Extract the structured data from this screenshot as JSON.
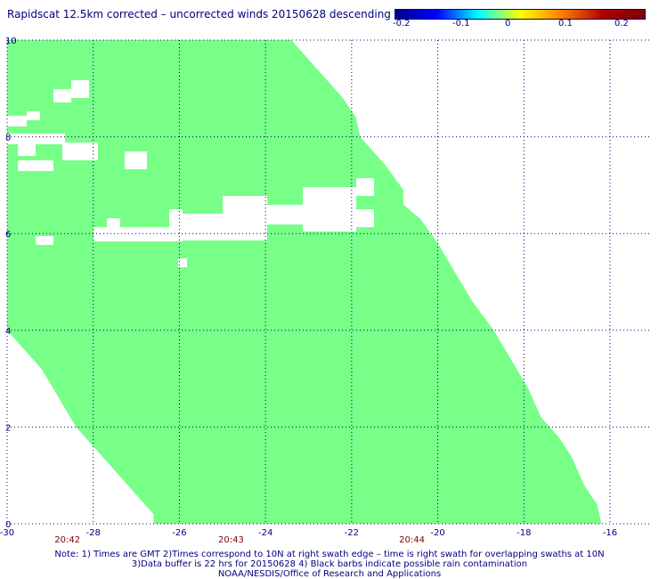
{
  "title": "Rapidscat 12.5km corrected – uncorrected winds 20150628 descending",
  "colorbar": {
    "labels": [
      "-0.2",
      "-0.1",
      "0",
      "0.1",
      "0.2"
    ],
    "colors": [
      "#00008b",
      "#0000ff",
      "#00ffff",
      "#ffff00",
      "#ff8000",
      "#b00000",
      "#800000"
    ]
  },
  "map_data": {
    "x_range": [
      -30,
      -16
    ],
    "y_range": [
      0,
      10
    ],
    "x_ticks": [
      "-30",
      "-28",
      "-26",
      "-24",
      "-22",
      "-20",
      "-18",
      "-16"
    ],
    "y_ticks": [
      "0",
      "2",
      "4",
      "6",
      "8",
      "10"
    ],
    "time_labels": [
      {
        "lon": -28.6,
        "text": "20:42"
      },
      {
        "lon": -24.8,
        "text": "20:43"
      },
      {
        "lon": -20.6,
        "text": "20:44"
      }
    ],
    "fill_color": "#77ff88",
    "grid_color": "#000080",
    "time_color": "#800000",
    "swath_right_edge": [
      [
        10,
        -23.4
      ],
      [
        9.6,
        -23.0
      ],
      [
        9.2,
        -22.6
      ],
      [
        8.8,
        -22.2
      ],
      [
        8.4,
        -21.9
      ],
      [
        8.0,
        -21.8
      ],
      [
        7.4,
        -21.2
      ],
      [
        6.9,
        -20.8
      ],
      [
        6.6,
        -20.8
      ],
      [
        6.3,
        -20.4
      ],
      [
        5.8,
        -20.0
      ],
      [
        5.2,
        -19.6
      ],
      [
        4.6,
        -19.2
      ],
      [
        4.0,
        -18.7
      ],
      [
        3.4,
        -18.3
      ],
      [
        2.8,
        -17.9
      ],
      [
        2.2,
        -17.6
      ],
      [
        1.8,
        -17.2
      ],
      [
        1.4,
        -16.9
      ],
      [
        0.8,
        -16.6
      ],
      [
        0.4,
        -16.3
      ],
      [
        0,
        -16.2
      ]
    ],
    "swath_left_edge": [
      [
        10,
        -30.0
      ],
      [
        4.0,
        -30.0
      ],
      [
        3.6,
        -29.6
      ],
      [
        3.2,
        -29.2
      ],
      [
        2.6,
        -28.8
      ],
      [
        2.0,
        -28.4
      ],
      [
        1.6,
        -28.0
      ],
      [
        1.2,
        -27.6
      ],
      [
        0.8,
        -27.2
      ],
      [
        0.4,
        -26.8
      ],
      [
        0.2,
        -26.6
      ],
      [
        0,
        -26.6
      ]
    ]
  },
  "notes": [
    "Note: 1) Times are GMT 2)Times correspond to 10N at right swath edge – time is right swath for overlapping swaths at 10N",
    "3)Data buffer is 22 hrs for 20150628 4) Black barbs indicate possible rain contamination",
    "NOAA/NESDIS/Office of Research and Applications"
  ]
}
